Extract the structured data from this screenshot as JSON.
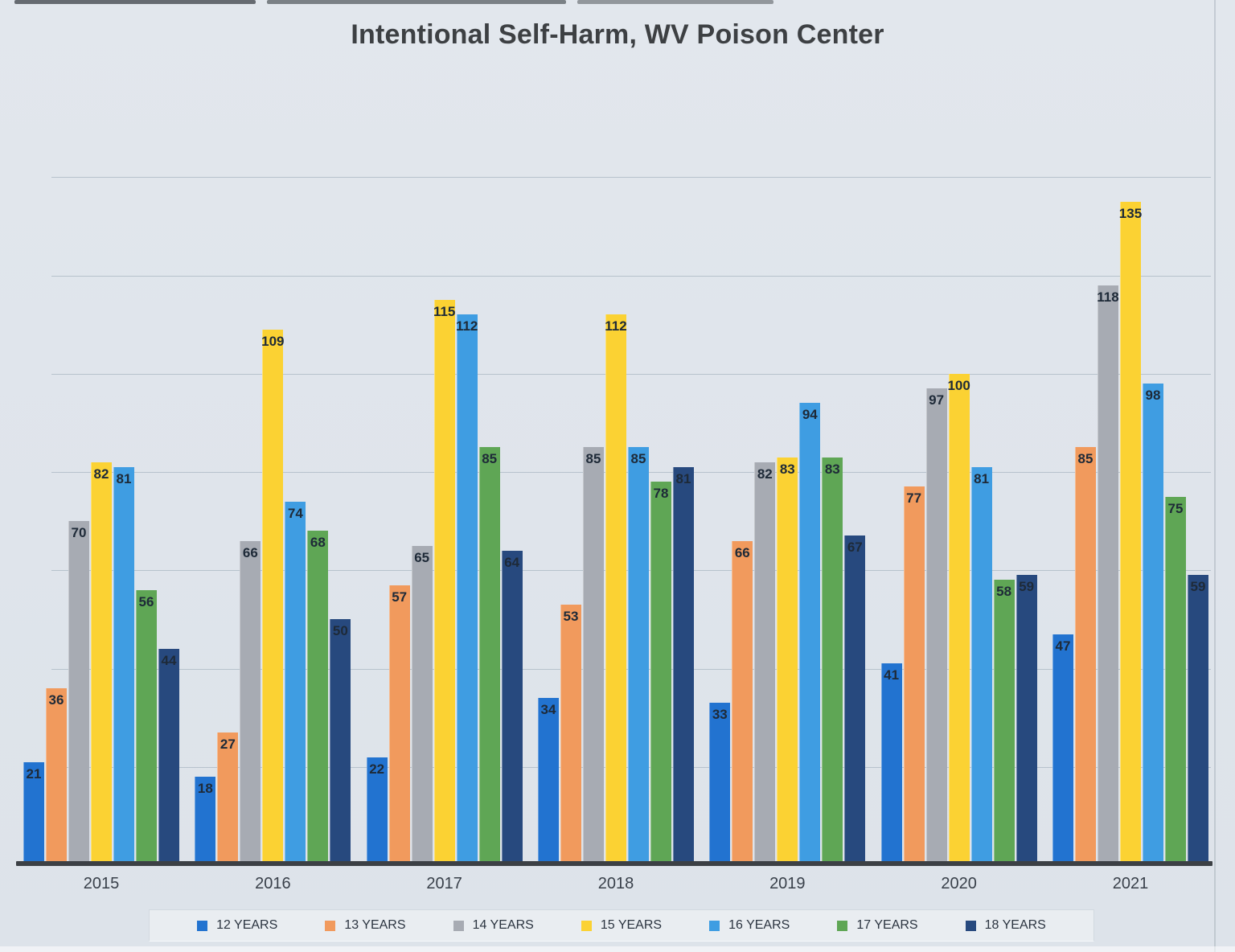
{
  "title": "Intentional Self-Harm, WV Poison Center",
  "chart_data": {
    "type": "bar",
    "title": "Intentional Self-Harm, WV Poison Center",
    "categories": [
      "2015",
      "2016",
      "2017",
      "2018",
      "2019",
      "2020",
      "2021"
    ],
    "series": [
      {
        "name": "12 YEARS",
        "color": "#2273d0",
        "values": [
          21,
          18,
          22,
          34,
          33,
          41,
          47
        ]
      },
      {
        "name": "13 YEARS",
        "color": "#f19a5d",
        "values": [
          36,
          27,
          57,
          53,
          66,
          77,
          85
        ]
      },
      {
        "name": "14 YEARS",
        "color": "#a7abb3",
        "values": [
          70,
          66,
          65,
          85,
          82,
          97,
          118
        ]
      },
      {
        "name": "15 YEARS",
        "color": "#fbd233",
        "values": [
          82,
          109,
          115,
          112,
          83,
          100,
          135
        ]
      },
      {
        "name": "16 YEARS",
        "color": "#3f9de2",
        "values": [
          81,
          74,
          112,
          85,
          94,
          81,
          98
        ]
      },
      {
        "name": "17 YEARS",
        "color": "#5fa655",
        "values": [
          56,
          68,
          85,
          78,
          83,
          58,
          75
        ]
      },
      {
        "name": "18 YEARS",
        "color": "#27497e",
        "values": [
          44,
          50,
          64,
          81,
          67,
          59,
          59
        ]
      }
    ],
    "xlabel": "",
    "ylabel": "",
    "ylim": [
      0,
      160
    ],
    "gridline_step": 20,
    "grid": "horizontal",
    "y_axis_labels_visible": false,
    "legend_position": "bottom",
    "data_labels": true
  }
}
